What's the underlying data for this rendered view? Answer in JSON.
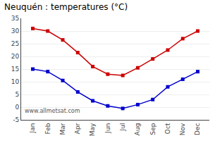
{
  "chart_data": {
    "type": "line",
    "title": "Neuquén : temperatures (°C)",
    "categories": [
      "Jan",
      "Feb",
      "Mar",
      "Apr",
      "May",
      "Jun",
      "Jul",
      "Aug",
      "Sep",
      "Oct",
      "Nov",
      "Dec"
    ],
    "series": [
      {
        "color": "#cc0000",
        "marker": "square",
        "values": [
          31,
          30,
          26.5,
          21.5,
          16,
          13,
          12.5,
          15.5,
          19,
          22.5,
          27,
          30
        ]
      },
      {
        "color": "#0000cc",
        "marker": "square",
        "values": [
          15,
          14,
          10.5,
          6,
          2.5,
          0.5,
          -0.5,
          1,
          3,
          8,
          11,
          14
        ]
      }
    ],
    "ylim": [
      -5,
      35
    ],
    "yticks": [
      -5,
      0,
      5,
      10,
      15,
      20,
      25,
      30,
      35
    ],
    "grid": true,
    "annotations": [
      "www.allmetsat.com"
    ]
  }
}
